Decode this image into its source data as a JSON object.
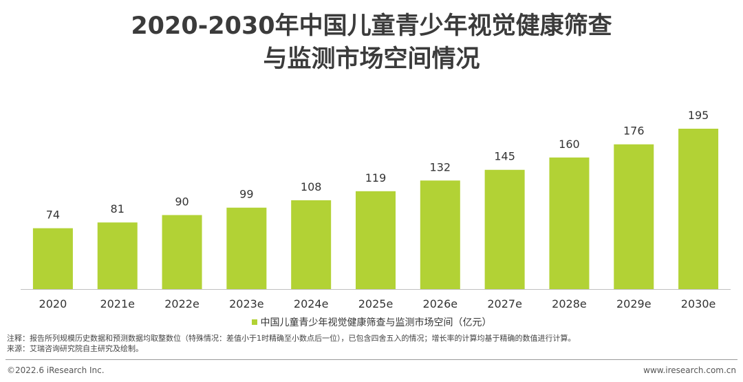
{
  "title": {
    "line1": "2020-2030年中国儿童青少年视觉健康筛查",
    "line2": "与监测市场空间情况"
  },
  "legend": {
    "label": "中国儿童青少年视觉健康筛查与监测市场空间（亿元）"
  },
  "notes": {
    "note": "注释：报告所列规模历史数据和预测数据均取整数位（特殊情况：差值小于1时精确至小数点后一位），已包含四舍五入的情况；增长率的计算均基于精确的数值进行计算。",
    "source": "来源：艾瑞咨询研究院自主研究及绘制。"
  },
  "footer": {
    "copyright": "©2022.6 iResearch Inc.",
    "website": "www.iresearch.com.cn"
  },
  "colors": {
    "bar": "#b2d235",
    "axis": "#bfbfbf"
  },
  "chart_data": {
    "type": "bar",
    "title": "2020-2030年中国儿童青少年视觉健康筛查与监测市场空间情况",
    "categories": [
      "2020",
      "2021e",
      "2022e",
      "2023e",
      "2024e",
      "2025e",
      "2026e",
      "2027e",
      "2028e",
      "2029e",
      "2030e"
    ],
    "series": [
      {
        "name": "中国儿童青少年视觉健康筛查与监测市场空间（亿元）",
        "values": [
          74,
          81,
          90,
          99,
          108,
          119,
          132,
          145,
          160,
          176,
          195
        ]
      }
    ],
    "ylim": [
      0,
      195
    ],
    "grid": false,
    "legend_position": "bottom"
  }
}
